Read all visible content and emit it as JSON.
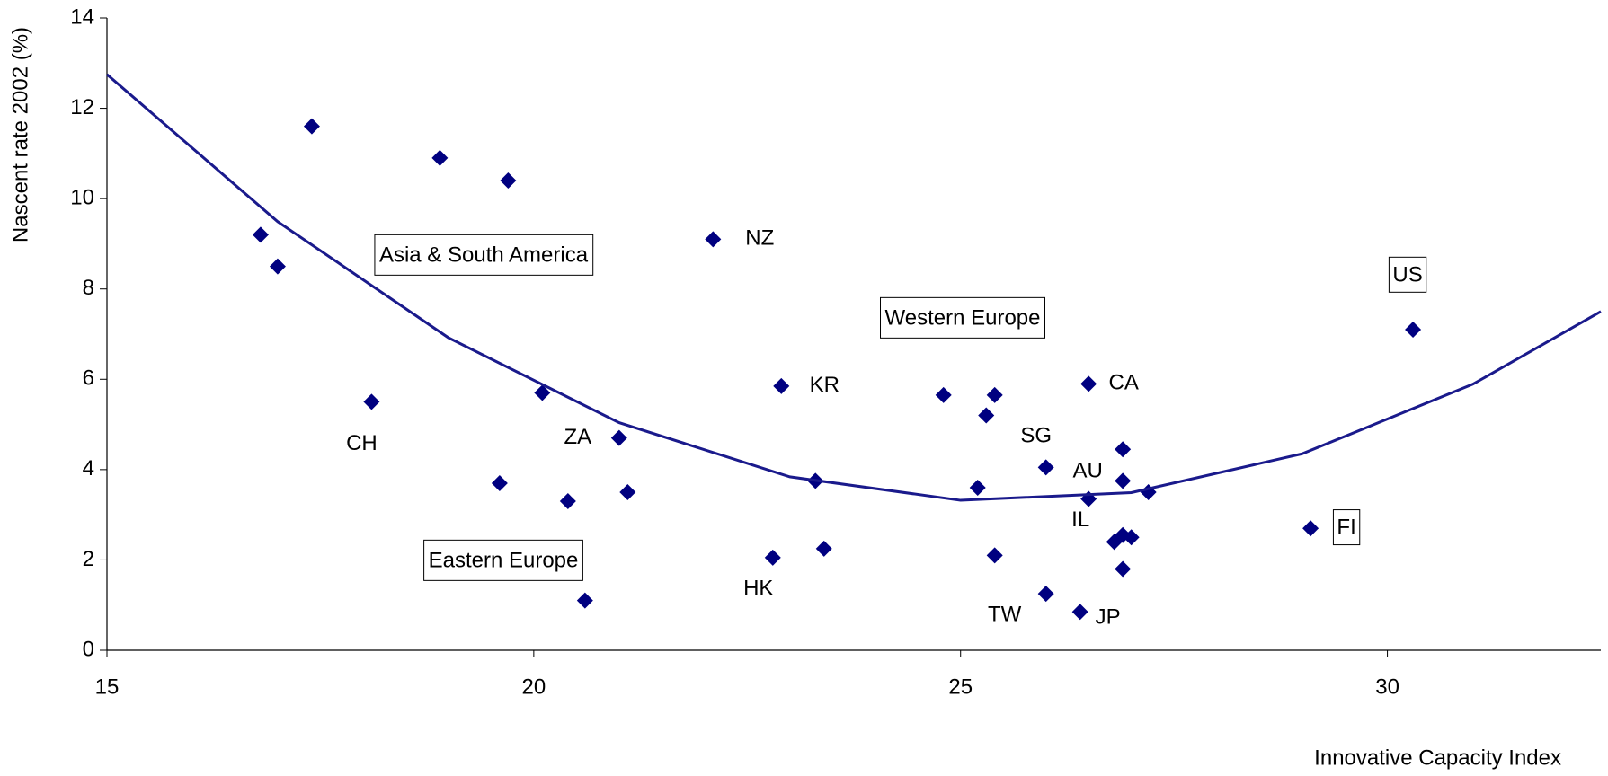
{
  "chart_data": {
    "type": "scatter",
    "xlabel": "Innovative Capacity Index",
    "ylabel": "Nascent rate 2002 (%)",
    "xlim": [
      15,
      32.5
    ],
    "xticks": [
      15,
      20,
      25,
      30
    ],
    "ylim": [
      0,
      14
    ],
    "yticks": [
      0,
      2,
      4,
      6,
      8,
      10,
      12,
      14
    ],
    "series": [
      {
        "type": "scatter",
        "color": "#000080",
        "x": [
          16.8,
          17.0,
          17.4,
          18.1,
          18.9,
          19.7,
          19.6,
          20.1,
          20.4,
          20.6,
          21.0,
          21.1,
          22.1,
          22.8,
          22.9,
          23.3,
          23.4,
          24.8,
          25.2,
          25.3,
          25.4,
          25.4,
          26.0,
          26.0,
          26.4,
          26.5,
          26.5,
          26.9,
          26.9,
          26.8,
          26.9,
          27.0,
          26.9,
          27.2,
          29.1,
          30.3
        ],
        "values": [
          9.2,
          8.5,
          11.6,
          5.5,
          10.9,
          10.4,
          3.7,
          5.7,
          3.3,
          1.1,
          4.7,
          3.5,
          9.1,
          2.05,
          5.85,
          3.75,
          2.25,
          5.65,
          3.6,
          5.2,
          5.65,
          2.1,
          4.05,
          1.25,
          0.85,
          3.35,
          5.9,
          4.45,
          3.75,
          2.4,
          2.55,
          2.5,
          1.8,
          3.5,
          2.7,
          7.1
        ],
        "point_labels": [
          null,
          null,
          null,
          "CH",
          null,
          null,
          null,
          null,
          null,
          null,
          "ZA",
          null,
          "NZ",
          "HK",
          "KR",
          null,
          null,
          null,
          null,
          null,
          null,
          null,
          "SG",
          "TW",
          "JP",
          "IL",
          "CA",
          "AU",
          null,
          null,
          null,
          null,
          null,
          null,
          "FI",
          "US"
        ]
      },
      {
        "type": "line",
        "color": "#1a1a8c",
        "x": [
          15,
          17,
          19,
          21,
          23,
          25,
          27,
          29,
          31,
          32.5
        ],
        "values": [
          12.75,
          9.49,
          6.92,
          5.04,
          3.84,
          3.32,
          3.49,
          4.35,
          5.89,
          7.5
        ]
      }
    ],
    "annotations": [
      "Asia & South America",
      "Western Europe",
      "Eastern Europe"
    ]
  }
}
